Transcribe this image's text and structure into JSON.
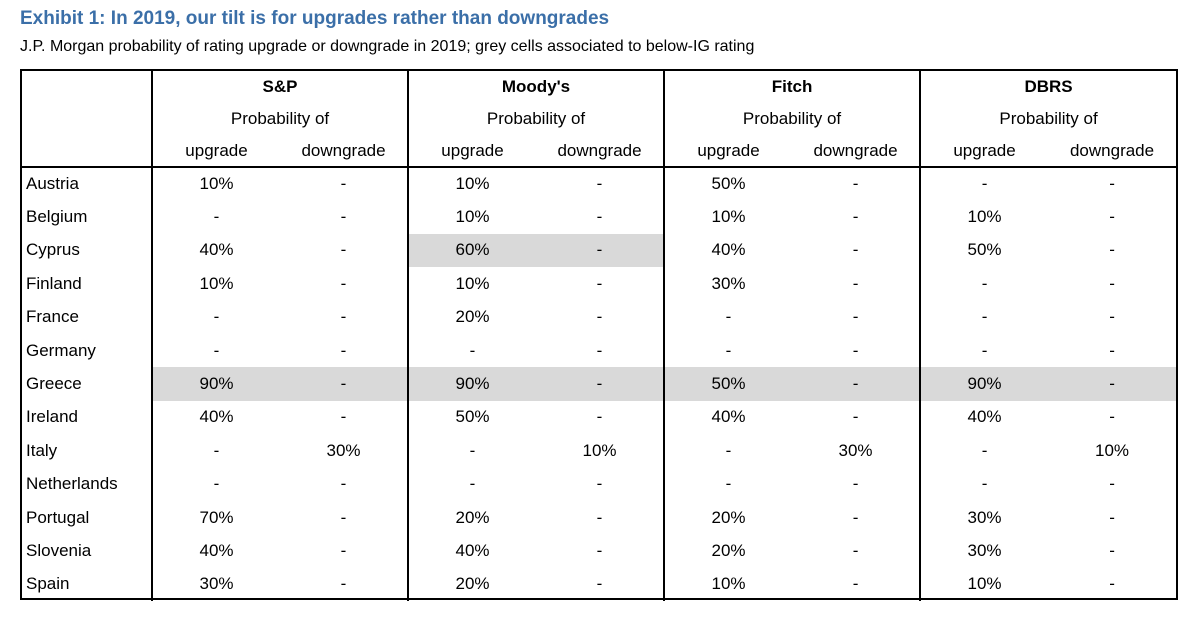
{
  "title": "Exhibit 1: In 2019, our tilt is for upgrades rather than downgrades",
  "subtitle": "J.P. Morgan probability of rating upgrade or downgrade in 2019; grey cells associated to below-IG rating",
  "agencies": [
    "S&P",
    "Moody's",
    "Fitch",
    "DBRS"
  ],
  "probability_label": "Probability of",
  "upgrade_label": "upgrade",
  "downgrade_label": "downgrade",
  "rows": [
    {
      "country": "Austria",
      "values": [
        "10%",
        "-",
        "10%",
        "-",
        "50%",
        "-",
        "-",
        "-"
      ],
      "grey": [
        false,
        false,
        false,
        false
      ]
    },
    {
      "country": "Belgium",
      "values": [
        "-",
        "-",
        "10%",
        "-",
        "10%",
        "-",
        "10%",
        "-"
      ],
      "grey": [
        false,
        false,
        false,
        false
      ]
    },
    {
      "country": "Cyprus",
      "values": [
        "40%",
        "-",
        "60%",
        "-",
        "40%",
        "-",
        "50%",
        "-"
      ],
      "grey": [
        false,
        true,
        false,
        false
      ]
    },
    {
      "country": "Finland",
      "values": [
        "10%",
        "-",
        "10%",
        "-",
        "30%",
        "-",
        "-",
        "-"
      ],
      "grey": [
        false,
        false,
        false,
        false
      ]
    },
    {
      "country": "France",
      "values": [
        "-",
        "-",
        "20%",
        "-",
        "-",
        "-",
        "-",
        "-"
      ],
      "grey": [
        false,
        false,
        false,
        false
      ]
    },
    {
      "country": "Germany",
      "values": [
        "-",
        "-",
        "-",
        "-",
        "-",
        "-",
        "-",
        "-"
      ],
      "grey": [
        false,
        false,
        false,
        false
      ]
    },
    {
      "country": "Greece",
      "values": [
        "90%",
        "-",
        "90%",
        "-",
        "50%",
        "-",
        "90%",
        "-"
      ],
      "grey": [
        true,
        true,
        true,
        true
      ]
    },
    {
      "country": "Ireland",
      "values": [
        "40%",
        "-",
        "50%",
        "-",
        "40%",
        "-",
        "40%",
        "-"
      ],
      "grey": [
        false,
        false,
        false,
        false
      ]
    },
    {
      "country": "Italy",
      "values": [
        "-",
        "30%",
        "-",
        "10%",
        "-",
        "30%",
        "-",
        "10%"
      ],
      "grey": [
        false,
        false,
        false,
        false
      ]
    },
    {
      "country": "Netherlands",
      "values": [
        "-",
        "-",
        "-",
        "-",
        "-",
        "-",
        "-",
        "-"
      ],
      "grey": [
        false,
        false,
        false,
        false
      ]
    },
    {
      "country": "Portugal",
      "values": [
        "70%",
        "-",
        "20%",
        "-",
        "20%",
        "-",
        "30%",
        "-"
      ],
      "grey": [
        false,
        false,
        false,
        false
      ]
    },
    {
      "country": "Slovenia",
      "values": [
        "40%",
        "-",
        "40%",
        "-",
        "20%",
        "-",
        "30%",
        "-"
      ],
      "grey": [
        false,
        false,
        false,
        false
      ]
    },
    {
      "country": "Spain",
      "values": [
        "30%",
        "-",
        "20%",
        "-",
        "10%",
        "-",
        "10%",
        "-"
      ],
      "grey": [
        false,
        false,
        false,
        false
      ]
    }
  ]
}
